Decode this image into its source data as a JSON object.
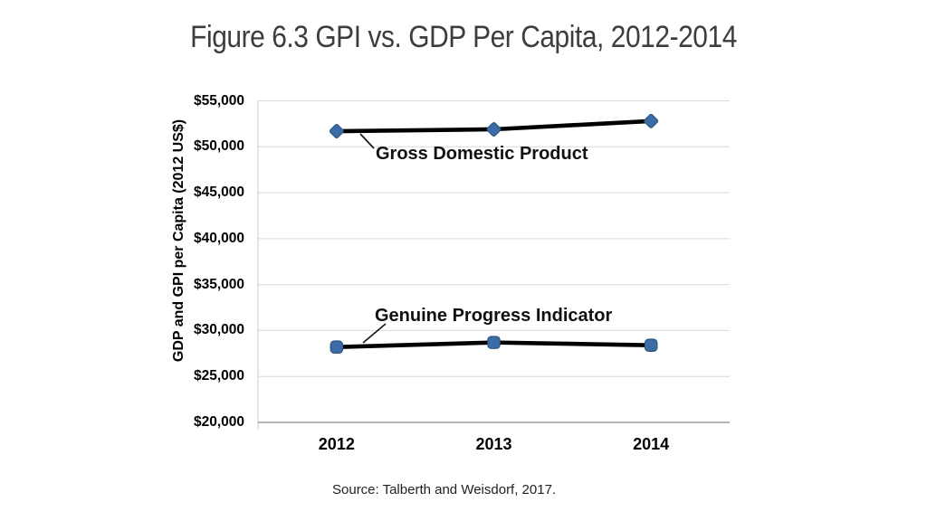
{
  "header": {
    "title": "Figure 6.3 GPI vs. GDP Per Capita, 2012-2014"
  },
  "chart_data": {
    "type": "line",
    "title": "Figure 6.3 GPI vs. GDP Per Capita, 2012-2014",
    "categories": [
      "2012",
      "2013",
      "2014"
    ],
    "series": [
      {
        "name": "Gross Domestic Product",
        "values": [
          51700,
          51900,
          52800
        ],
        "marker": "diamond"
      },
      {
        "name": "Genuine Progress Indicator",
        "values": [
          28200,
          28700,
          28400
        ],
        "marker": "square"
      }
    ],
    "xlabel": "",
    "ylabel": "GDP and GPI per Capita (2012 US$)",
    "ylim": [
      20000,
      55000
    ],
    "ytick_step": 5000,
    "ytick_labels": [
      "$20,000",
      "$25,000",
      "$30,000",
      "$35,000",
      "$40,000",
      "$45,000",
      "$50,000",
      "$55,000"
    ],
    "grid": true,
    "legend_position": "inline-annotations",
    "line_color": "#000000",
    "marker_color": "#3c6ca6",
    "marker_edge_color": "#2e5784",
    "gridline_color": "#d9d9d9",
    "axis_line_color": "#9c9c9c"
  },
  "source": {
    "text": "Source: Talberth and Weisdorf, 2017."
  }
}
